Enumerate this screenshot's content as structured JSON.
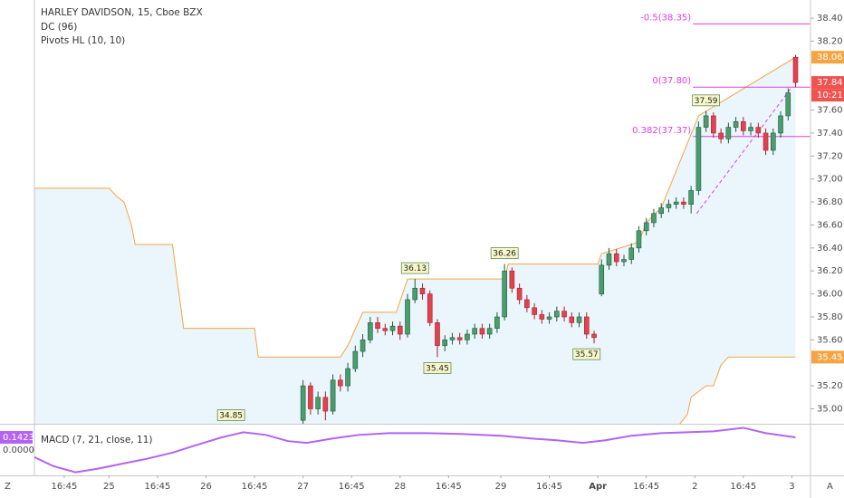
{
  "chart_data": {
    "type": "candlestick",
    "title": "HARLEY DAVIDSON, 15, Cboe BZX",
    "indicators": [
      "DC (96)",
      "Pivots HL (10, 10)"
    ],
    "colors": {
      "up": "#4a9e6e",
      "up_edge": "#1f5a3a",
      "down": "#e0434f",
      "down_edge": "#a8202b"
    },
    "x": [
      72,
      74,
      76,
      78,
      80,
      82,
      84,
      86,
      88,
      90,
      92,
      94,
      96,
      98,
      100,
      102,
      104,
      106,
      108,
      110,
      112,
      114,
      116,
      118,
      120,
      122,
      124,
      126,
      128,
      130,
      132,
      134,
      136,
      138,
      140,
      142,
      144,
      146,
      148,
      150,
      152,
      154,
      156,
      158,
      160,
      162,
      164,
      166,
      168,
      170,
      172,
      174,
      176,
      178,
      180,
      182,
      184,
      186,
      188,
      190,
      192,
      194,
      196,
      198,
      200,
      202,
      204
    ],
    "open": [
      34.9,
      35.2,
      35.0,
      35.1,
      34.98,
      35.25,
      35.2,
      35.35,
      35.5,
      35.6,
      35.75,
      35.7,
      35.68,
      35.72,
      35.65,
      35.95,
      36.05,
      36.0,
      35.75,
      35.55,
      35.6,
      35.62,
      35.6,
      35.65,
      35.7,
      35.65,
      35.7,
      35.8,
      36.2,
      36.05,
      35.95,
      35.88,
      35.82,
      35.78,
      35.8,
      35.85,
      35.8,
      35.75,
      35.8,
      35.65,
      36.0,
      36.25,
      36.35,
      36.28,
      36.3,
      36.4,
      36.55,
      36.62,
      36.7,
      36.75,
      36.78,
      36.8,
      36.78,
      36.9,
      37.45,
      37.55,
      37.4,
      37.35,
      37.45,
      37.5,
      37.42,
      37.45,
      37.4,
      37.25,
      37.4,
      37.55,
      38.06
    ],
    "high": [
      35.25,
      35.23,
      35.15,
      35.15,
      35.3,
      35.3,
      35.4,
      35.55,
      35.65,
      35.8,
      35.8,
      35.74,
      35.76,
      35.76,
      36.0,
      36.13,
      36.09,
      36.03,
      35.78,
      35.64,
      35.66,
      35.66,
      35.69,
      35.74,
      35.74,
      35.74,
      35.84,
      36.26,
      36.23,
      36.09,
      35.99,
      35.92,
      35.86,
      35.84,
      35.89,
      35.89,
      35.84,
      35.84,
      35.84,
      35.68,
      36.3,
      36.4,
      36.39,
      36.34,
      36.44,
      36.59,
      36.66,
      36.74,
      36.79,
      36.82,
      36.84,
      36.84,
      36.94,
      37.5,
      37.59,
      37.58,
      37.44,
      37.49,
      37.54,
      37.54,
      37.49,
      37.49,
      37.44,
      37.44,
      37.59,
      37.79,
      38.08
    ],
    "low": [
      34.87,
      34.95,
      34.95,
      34.9,
      34.95,
      35.15,
      35.15,
      35.32,
      35.45,
      35.57,
      35.66,
      35.64,
      35.64,
      35.6,
      35.62,
      35.92,
      35.95,
      35.72,
      35.45,
      35.5,
      35.56,
      35.56,
      35.56,
      35.61,
      35.61,
      35.61,
      35.66,
      35.77,
      36.01,
      35.91,
      35.84,
      35.78,
      35.74,
      35.74,
      35.76,
      35.76,
      35.71,
      35.71,
      35.61,
      35.57,
      35.98,
      36.21,
      36.24,
      36.24,
      36.26,
      36.36,
      36.51,
      36.58,
      36.66,
      36.71,
      36.74,
      36.74,
      36.7,
      36.86,
      37.41,
      37.36,
      37.31,
      37.31,
      37.41,
      37.38,
      37.38,
      37.36,
      37.21,
      37.21,
      37.36,
      37.51,
      37.8
    ],
    "close": [
      35.2,
      35.0,
      35.1,
      34.98,
      35.25,
      35.2,
      35.35,
      35.5,
      35.6,
      35.75,
      35.7,
      35.68,
      35.72,
      35.65,
      35.95,
      36.05,
      36.0,
      35.75,
      35.55,
      35.6,
      35.62,
      35.6,
      35.65,
      35.7,
      35.65,
      35.7,
      35.8,
      36.2,
      36.05,
      35.95,
      35.88,
      35.82,
      35.78,
      35.8,
      35.85,
      35.8,
      35.75,
      35.8,
      35.65,
      35.62,
      36.25,
      36.35,
      36.28,
      36.3,
      36.4,
      36.55,
      36.62,
      36.7,
      36.75,
      36.78,
      36.8,
      36.78,
      36.9,
      37.45,
      37.55,
      37.4,
      37.35,
      37.45,
      37.5,
      37.42,
      37.45,
      37.4,
      37.25,
      37.4,
      37.55,
      37.75,
      37.84
    ],
    "xlim": [
      0,
      208
    ],
    "xticks": [
      {
        "value": 8,
        "label": "16:45"
      },
      {
        "value": 20,
        "label": "25"
      },
      {
        "value": 33,
        "label": "16:45"
      },
      {
        "value": 46,
        "label": "26"
      },
      {
        "value": 59,
        "label": "16:45"
      },
      {
        "value": 72,
        "label": "27"
      },
      {
        "value": 85,
        "label": "16:45"
      },
      {
        "value": 98,
        "label": "28"
      },
      {
        "value": 111,
        "label": "16:45"
      },
      {
        "value": 125,
        "label": "29"
      },
      {
        "value": 138,
        "label": "16:45"
      },
      {
        "value": 151,
        "label": "Apr"
      },
      {
        "value": 164,
        "label": "16:45"
      },
      {
        "value": 177,
        "label": "2"
      },
      {
        "value": 190,
        "label": "16:45"
      },
      {
        "value": 203,
        "label": "3"
      }
    ],
    "ylim": [
      34.87,
      38.558
    ],
    "yticks": [
      {
        "value": 38.4,
        "label": "38.40"
      },
      {
        "value": 38.2,
        "label": "38.20"
      },
      {
        "value": 37.6,
        "label": "37.60"
      },
      {
        "value": 37.4,
        "label": "37.40"
      },
      {
        "value": 37.2,
        "label": "37.20"
      },
      {
        "value": 37.0,
        "label": "37.00"
      },
      {
        "value": 36.8,
        "label": "36.80"
      },
      {
        "value": 36.6,
        "label": "36.60"
      },
      {
        "value": 36.4,
        "label": "36.40"
      },
      {
        "value": 36.2,
        "label": "36.20"
      },
      {
        "value": 36.0,
        "label": "36.00"
      },
      {
        "value": 35.8,
        "label": "35.80"
      },
      {
        "value": 35.6,
        "label": "35.60"
      },
      {
        "value": 35.2,
        "label": "35.20"
      },
      {
        "value": 35.0,
        "label": "35.00"
      }
    ],
    "grid": false,
    "donchian": {
      "color": "#f5a442",
      "fill": "#eaf5fc",
      "upper": {
        "x": [
          0,
          20,
          22,
          24,
          26,
          27,
          37,
          40,
          59,
          60,
          82,
          84,
          88,
          97,
          100,
          126,
          127,
          151,
          152,
          162,
          164,
          168,
          178,
          180,
          204
        ],
        "values": [
          36.92,
          36.92,
          36.85,
          36.8,
          36.6,
          36.43,
          36.43,
          35.7,
          35.7,
          35.45,
          35.45,
          35.55,
          35.84,
          35.84,
          36.13,
          36.13,
          36.26,
          36.26,
          36.35,
          36.45,
          36.62,
          36.75,
          37.55,
          37.59,
          38.06
        ]
      },
      "lower": {
        "x": [
          173,
          175,
          176,
          180,
          182,
          184,
          186,
          204
        ],
        "values": [
          34.87,
          34.95,
          35.1,
          35.2,
          35.2,
          35.38,
          35.45,
          35.45
        ]
      }
    },
    "pivots": [
      {
        "x": 52.7,
        "value": 34.85,
        "side": "high"
      },
      {
        "x": 102,
        "value": 36.13,
        "side": "high"
      },
      {
        "x": 108,
        "value": 35.45,
        "side": "low"
      },
      {
        "x": 126,
        "value": 36.26,
        "side": "high"
      },
      {
        "x": 148,
        "value": 35.57,
        "side": "low"
      },
      {
        "x": 180,
        "value": 37.59,
        "side": "high"
      }
    ],
    "fib": {
      "color": "#e03fe0",
      "from": 176.5,
      "levels": [
        {
          "label": "-0.5(38.35)",
          "value": 38.35
        },
        {
          "label": "0(37.80)",
          "value": 37.8
        },
        {
          "label": "0.382(37.37)",
          "value": 37.37
        }
      ],
      "trend": {
        "x": [
          177.5,
          203
        ],
        "values": [
          36.7,
          37.8
        ]
      }
    },
    "price_badges": [
      {
        "value": 38.06,
        "color": "#f5a442"
      },
      {
        "value": 37.84,
        "color": "#ef5350"
      },
      {
        "value": 35.45,
        "color": "#f5a442"
      }
    ],
    "countdown": "10:21",
    "macd": {
      "title": "MACD (7, 21, close, 11)",
      "color": "#b463f0",
      "x": [
        0,
        5,
        11,
        17,
        24,
        30,
        37,
        43,
        50,
        56,
        62,
        68,
        73,
        80,
        87,
        95,
        105,
        115,
        125,
        133,
        140,
        147,
        153,
        160,
        168,
        175,
        182,
        190,
        196,
        204
      ],
      "values": [
        -0.08,
        -0.18,
        -0.25,
        -0.21,
        -0.15,
        -0.1,
        -0.03,
        0.05,
        0.14,
        0.2,
        0.17,
        0.1,
        0.08,
        0.13,
        0.17,
        0.19,
        0.19,
        0.18,
        0.16,
        0.13,
        0.11,
        0.08,
        0.11,
        0.16,
        0.19,
        0.2,
        0.21,
        0.25,
        0.19,
        0.1423
      ],
      "ylim": [
        -0.285,
        0.275
      ],
      "yticks": [
        {
          "value": 0,
          "label": "0.0000"
        }
      ],
      "badge": 0.1423
    }
  },
  "toolbar": {
    "left": "Z",
    "right": "A"
  }
}
